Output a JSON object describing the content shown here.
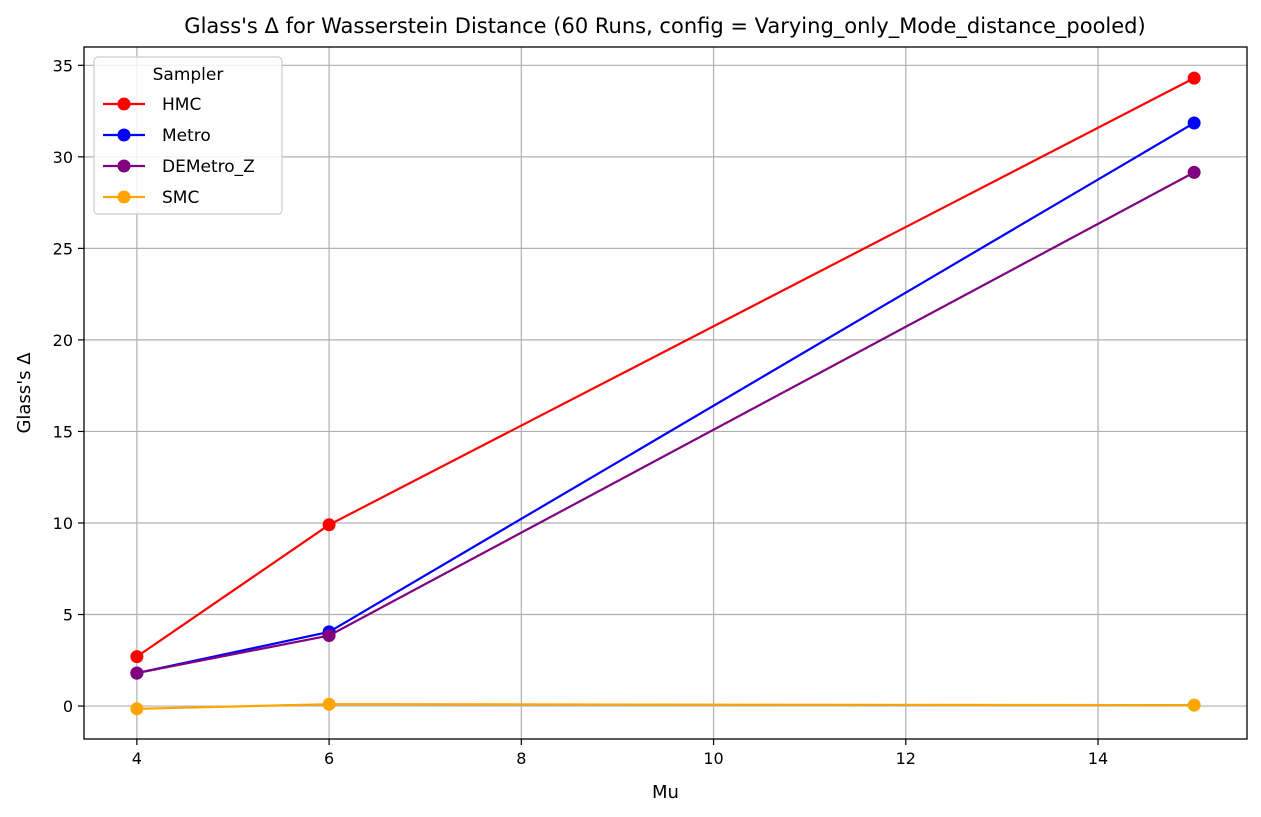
{
  "chart_data": {
    "type": "line",
    "title": "Glass's Δ for Wasserstein Distance (60 Runs, config = Varying_only_Mode_distance_pooled)",
    "xlabel": "Mu",
    "ylabel": "Glass's Δ",
    "x": [
      4,
      6,
      15
    ],
    "xlim": [
      3.45,
      15.55
    ],
    "ylim": [
      -1.8,
      36.0
    ],
    "xticks": [
      4,
      6,
      8,
      10,
      12,
      14
    ],
    "yticks": [
      0,
      5,
      10,
      15,
      20,
      25,
      30,
      35
    ],
    "grid": true,
    "legend": {
      "title": "Sampler",
      "placement": "top-left"
    },
    "series": [
      {
        "name": "HMC",
        "color": "#ff0000",
        "values": [
          2.7,
          9.9,
          34.3
        ]
      },
      {
        "name": "Metro",
        "color": "#0000ff",
        "values": [
          1.8,
          4.05,
          31.85
        ]
      },
      {
        "name": "DEMetro_Z",
        "color": "#800080",
        "values": [
          1.8,
          3.85,
          29.15
        ]
      },
      {
        "name": "SMC",
        "color": "#ffa500",
        "values": [
          -0.15,
          0.1,
          0.05
        ]
      }
    ]
  }
}
